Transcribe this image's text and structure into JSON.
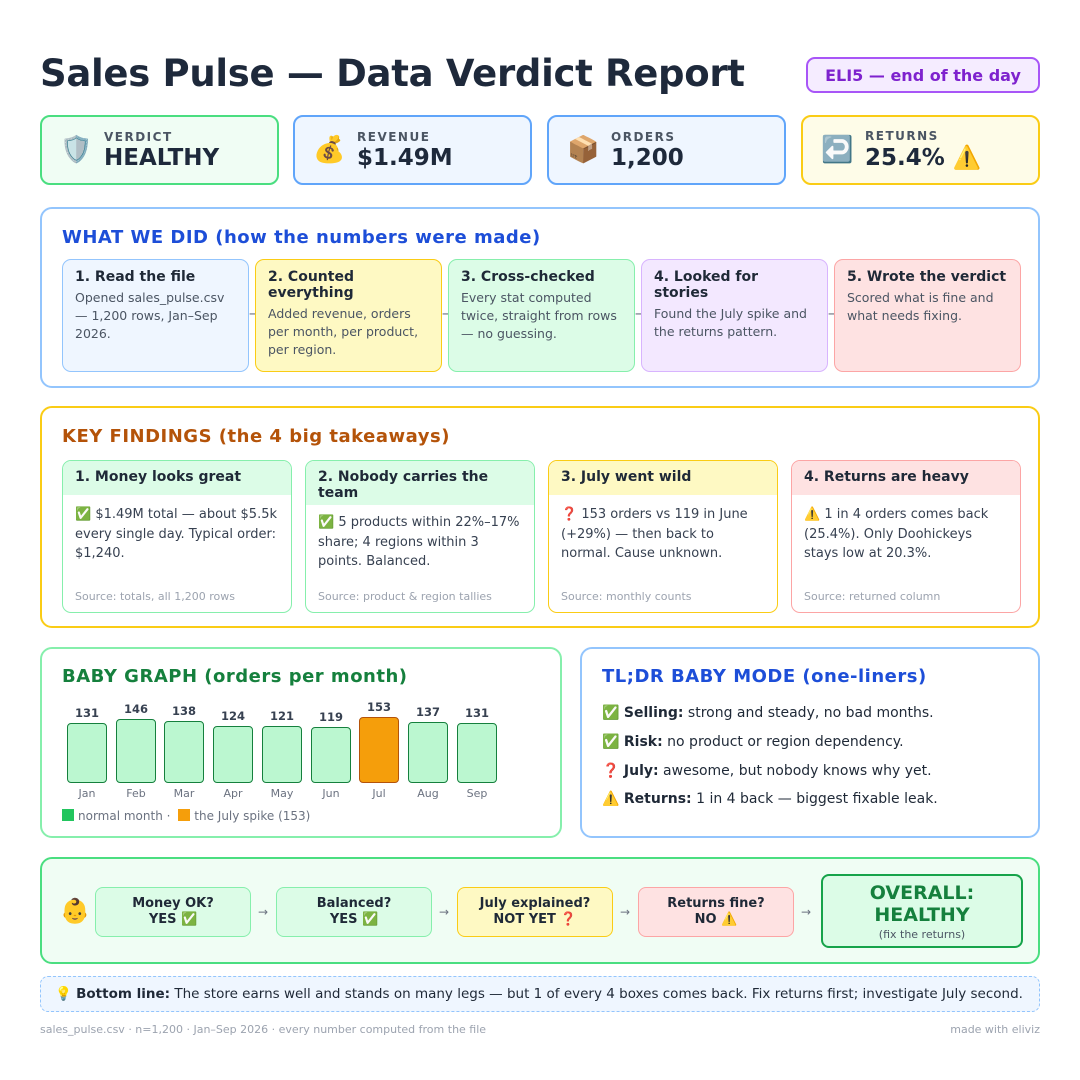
{
  "header": {
    "title": "Sales Pulse — Data Verdict Report",
    "badge": "ELI5 — end of the day"
  },
  "kpis": [
    {
      "icon": "🛡️",
      "label": "VERDICT",
      "value": "HEALTHY",
      "extra": ""
    },
    {
      "icon": "💰",
      "label": "REVENUE",
      "value": "$1.49M",
      "extra": ""
    },
    {
      "icon": "📦",
      "label": "ORDERS",
      "value": "1,200",
      "extra": ""
    },
    {
      "icon": "↩️",
      "label": "RETURNS",
      "value": "25.4%",
      "extra": "⚠️"
    }
  ],
  "what_we_did": {
    "heading": "WHAT WE DID (how the numbers were made)",
    "steps": [
      {
        "title": "1. Read the file",
        "desc": "Opened sales_pulse.csv — 1,200 rows, Jan–Sep 2026."
      },
      {
        "title": "2. Counted everything",
        "desc": "Added revenue, orders per month, per product, per region."
      },
      {
        "title": "3. Cross-checked",
        "desc": "Every stat computed twice, straight from rows — no guessing."
      },
      {
        "title": "4. Looked for stories",
        "desc": "Found the July spike and the returns pattern."
      },
      {
        "title": "5. Wrote the verdict",
        "desc": "Scored what is fine and what needs fixing."
      }
    ],
    "arrow": "→"
  },
  "key_findings": {
    "heading": "KEY FINDINGS (the 4 big takeaways)",
    "cards": [
      {
        "title": "1. Money looks great",
        "icon": "✅",
        "body": "$1.49M total — about $5.5k every single day. Typical order: $1,240.",
        "source": "Source: totals, all 1,200 rows"
      },
      {
        "title": "2. Nobody carries the team",
        "icon": "✅",
        "body": "5 products within 22%–17% share; 4 regions within 3 points. Balanced.",
        "source": "Source: product & region tallies"
      },
      {
        "title": "3. July went wild",
        "icon": "❓",
        "body": "153 orders vs 119 in June (+29%) — then back to normal. Cause unknown.",
        "source": "Source: monthly counts"
      },
      {
        "title": "4. Returns are heavy",
        "icon": "⚠️",
        "body": "1 in 4 orders comes back (25.4%). Only Doohickeys stays low at 20.3%.",
        "source": "Source: returned column"
      }
    ]
  },
  "baby_graph": {
    "heading": "BABY GRAPH (orders per month)",
    "legend_normal": "normal month ·",
    "legend_spike": "the July spike (153)"
  },
  "chart_data": {
    "type": "bar",
    "title": "BABY GRAPH (orders per month)",
    "categories": [
      "Jan",
      "Feb",
      "Mar",
      "Apr",
      "May",
      "Jun",
      "Jul",
      "Aug",
      "Sep"
    ],
    "values": [
      131,
      146,
      138,
      124,
      121,
      119,
      153,
      137,
      131
    ],
    "highlight": "Jul",
    "colors": {
      "normal": "#bbf7d0",
      "spike": "#f59e0b"
    },
    "xlabel": "",
    "ylabel": ""
  },
  "tldr": {
    "heading": "TL;DR BABY MODE (one-liners)",
    "lines": [
      {
        "icon": "✅",
        "key": "Selling:",
        "text": "strong and steady, no bad months."
      },
      {
        "icon": "✅",
        "key": "Risk:",
        "text": "no product or region dependency."
      },
      {
        "icon": "❓",
        "key": "July:",
        "text": "awesome, but nobody knows why yet."
      },
      {
        "icon": "⚠️",
        "key": "Returns:",
        "text": "1 in 4 back — biggest fixable leak."
      }
    ]
  },
  "checklist": {
    "avatar": "👶",
    "items": [
      {
        "q": "Money OK?",
        "a": "YES ✅"
      },
      {
        "q": "Balanced?",
        "a": "YES ✅"
      },
      {
        "q": "July explained?",
        "a": "NOT YET ❓"
      },
      {
        "q": "Returns fine?",
        "a": "NO ⚠️"
      }
    ],
    "overall_title": "OVERALL: HEALTHY",
    "overall_sub": "(fix the returns)"
  },
  "bottom_line": {
    "icon": "💡",
    "label": "Bottom line:",
    "text": "The store earns well and stands on many legs — but 1 of every 4 boxes comes back. Fix returns first; investigate July second."
  },
  "footer": {
    "left": "sales_pulse.csv · n=1,200 · Jan–Sep 2026 · every number computed from the file",
    "right": "made with eliviz"
  },
  "colors": {
    "green": "#22c55e",
    "blue": "#60a5fa",
    "yellow": "#eab308",
    "red": "#f87171",
    "purple": "#a855f7"
  }
}
